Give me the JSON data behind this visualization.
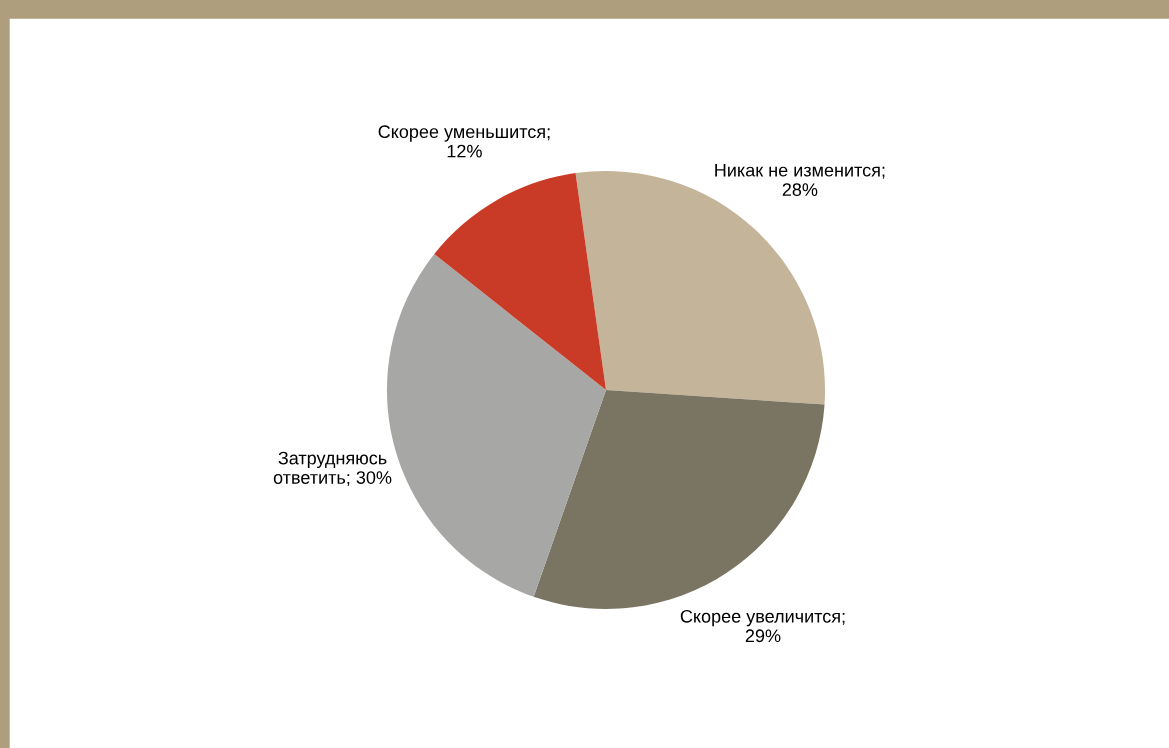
{
  "chart_data": {
    "type": "pie",
    "categories": [
      "Никак не изменится;\n28%",
      "Скорее увеличится;\n29%",
      "Затрудняюсь\nответить; 30%",
      "Скорее уменьшится;\n12%"
    ],
    "values": [
      28,
      29,
      30,
      12
    ],
    "colors": [
      "#c4b59a",
      "#7a7462",
      "#a7a8a5",
      "#c93b26"
    ]
  }
}
